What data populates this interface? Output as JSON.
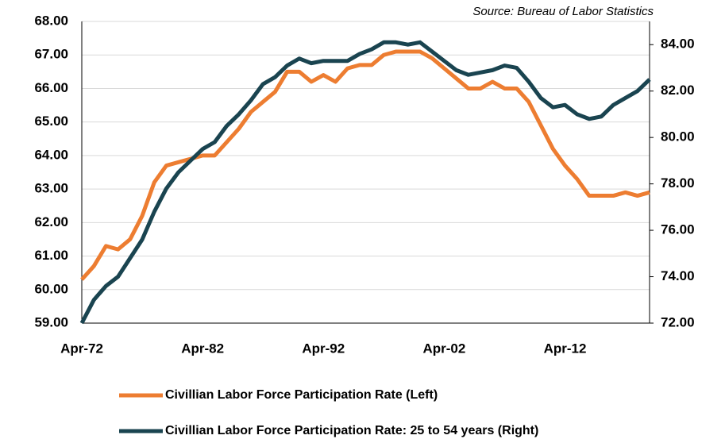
{
  "chart_data": {
    "type": "line",
    "source": "Source: Bureau of Labor Statistics",
    "categories": [
      "Apr-72",
      null,
      null,
      null,
      null,
      null,
      null,
      null,
      null,
      null,
      "Apr-82",
      null,
      null,
      null,
      null,
      null,
      null,
      null,
      null,
      null,
      "Apr-92",
      null,
      null,
      null,
      null,
      null,
      null,
      null,
      null,
      null,
      "Apr-02",
      null,
      null,
      null,
      null,
      null,
      null,
      null,
      null,
      null,
      "Apr-12",
      null,
      null,
      null,
      null,
      null,
      null,
      null
    ],
    "series": [
      {
        "name": "Civillian Labor Force Participation Rate (Left)",
        "color": "#ed7d31",
        "axis": "y",
        "values": [
          60.3,
          60.7,
          61.3,
          61.2,
          61.5,
          62.2,
          63.2,
          63.7,
          63.8,
          63.9,
          64.0,
          64.0,
          64.4,
          64.8,
          65.3,
          65.6,
          65.9,
          66.5,
          66.5,
          66.2,
          66.4,
          66.2,
          66.6,
          66.7,
          66.7,
          67.0,
          67.1,
          67.1,
          67.1,
          66.9,
          66.6,
          66.3,
          66.0,
          66.0,
          66.2,
          66.0,
          66.0,
          65.6,
          64.9,
          64.2,
          63.7,
          63.3,
          62.8,
          62.8,
          62.8,
          62.9,
          62.8,
          62.9
        ]
      },
      {
        "name": "Civillian Labor Force Participation Rate: 25 to 54 years (Right)",
        "color": "#1a4450",
        "axis": "y2",
        "values": [
          72.0,
          73.0,
          73.6,
          74.0,
          74.8,
          75.6,
          76.8,
          77.8,
          78.5,
          79.0,
          79.5,
          79.8,
          80.5,
          81.0,
          81.6,
          82.3,
          82.6,
          83.1,
          83.4,
          83.2,
          83.3,
          83.3,
          83.3,
          83.6,
          83.8,
          84.1,
          84.1,
          84.0,
          84.1,
          83.7,
          83.3,
          82.9,
          82.7,
          82.8,
          82.9,
          83.1,
          83.0,
          82.4,
          81.7,
          81.3,
          81.4,
          81.0,
          80.8,
          80.9,
          81.4,
          81.7,
          82.0,
          82.5
        ]
      }
    ],
    "ylim": [
      59,
      68
    ],
    "yticks": [
      {
        "value": 59,
        "label": "59.00"
      },
      {
        "value": 60,
        "label": "60.00"
      },
      {
        "value": 61,
        "label": "61.00"
      },
      {
        "value": 62,
        "label": "62.00"
      },
      {
        "value": 63,
        "label": "63.00"
      },
      {
        "value": 64,
        "label": "64.00"
      },
      {
        "value": 65,
        "label": "65.00"
      },
      {
        "value": 66,
        "label": "66.00"
      },
      {
        "value": 67,
        "label": "67.00"
      },
      {
        "value": 68,
        "label": "68.00"
      }
    ],
    "y2lim": [
      72,
      85
    ],
    "y2ticks": [
      {
        "value": 72,
        "label": "72.00"
      },
      {
        "value": 74,
        "label": "74.00"
      },
      {
        "value": 76,
        "label": "76.00"
      },
      {
        "value": 78,
        "label": "78.00"
      },
      {
        "value": 80,
        "label": "80.00"
      },
      {
        "value": 82,
        "label": "82.00"
      },
      {
        "value": 84,
        "label": "84.00"
      }
    ],
    "grid": true,
    "legend": "bottom"
  }
}
